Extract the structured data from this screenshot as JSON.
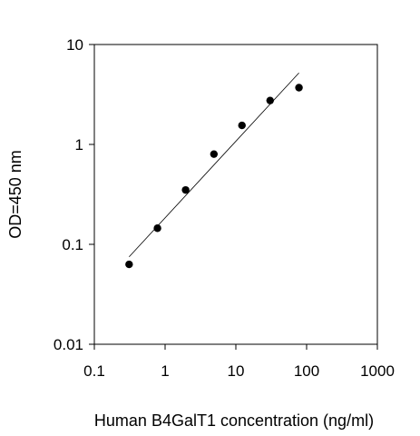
{
  "chart_data": {
    "type": "scatter",
    "title": "",
    "xlabel": "Human B4GalT1 concentration (ng/ml)",
    "ylabel": "OD=450 nm",
    "x_scale": "log",
    "y_scale": "log",
    "xlim": [
      0.1,
      1000
    ],
    "ylim": [
      0.01,
      10
    ],
    "x_ticks": [
      {
        "value": 0.1,
        "label": "0.1"
      },
      {
        "value": 1,
        "label": "1"
      },
      {
        "value": 10,
        "label": "10"
      },
      {
        "value": 100,
        "label": "100"
      },
      {
        "value": 1000,
        "label": "1000"
      }
    ],
    "y_ticks": [
      {
        "value": 0.01,
        "label": "0.01"
      },
      {
        "value": 0.1,
        "label": "0.1"
      },
      {
        "value": 1,
        "label": "1"
      },
      {
        "value": 10,
        "label": "10"
      }
    ],
    "grid": false,
    "legend": "none",
    "points": [
      {
        "x": 0.31,
        "y": 0.063
      },
      {
        "x": 0.78,
        "y": 0.145
      },
      {
        "x": 1.95,
        "y": 0.35
      },
      {
        "x": 4.9,
        "y": 0.8
      },
      {
        "x": 12.2,
        "y": 1.55
      },
      {
        "x": 30.5,
        "y": 2.75
      },
      {
        "x": 78,
        "y": 3.7
      }
    ],
    "fit_line": {
      "x": [
        0.31,
        78
      ],
      "y": [
        0.075,
        5.2
      ]
    },
    "colors": {
      "points": "#000000",
      "fit_line": "#000000",
      "axes": "#000000"
    }
  }
}
